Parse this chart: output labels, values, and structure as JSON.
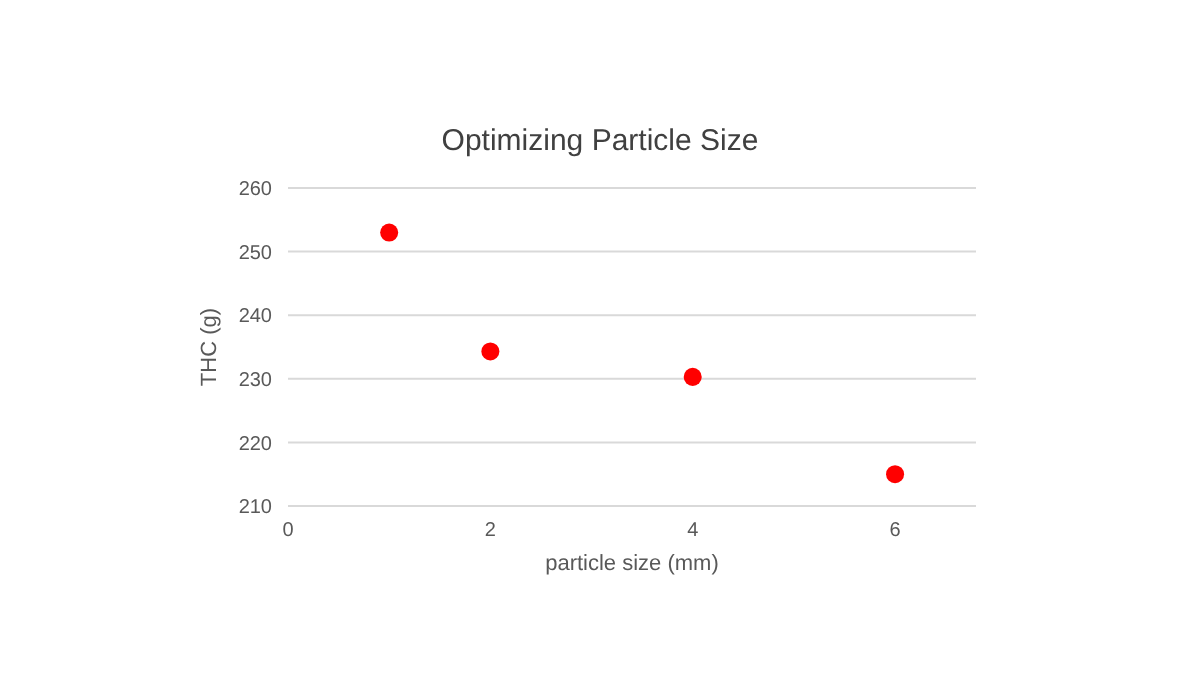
{
  "chart_data": {
    "type": "scatter",
    "title": "Optimizing Particle Size",
    "xlabel": "particle size (mm)",
    "ylabel": "THC (g)",
    "x": [
      1,
      2,
      4,
      6
    ],
    "series": [
      {
        "color": "#ff0000",
        "values": [
          253,
          234.3,
          230.3,
          215
        ]
      }
    ],
    "xlim": [
      0,
      6.8
    ],
    "xticks": [
      0,
      2,
      4,
      6
    ],
    "ylim": [
      210,
      260
    ],
    "yticks": [
      210,
      220,
      230,
      240,
      250,
      260
    ],
    "grid": "y",
    "marker": "circle",
    "legend": false
  }
}
